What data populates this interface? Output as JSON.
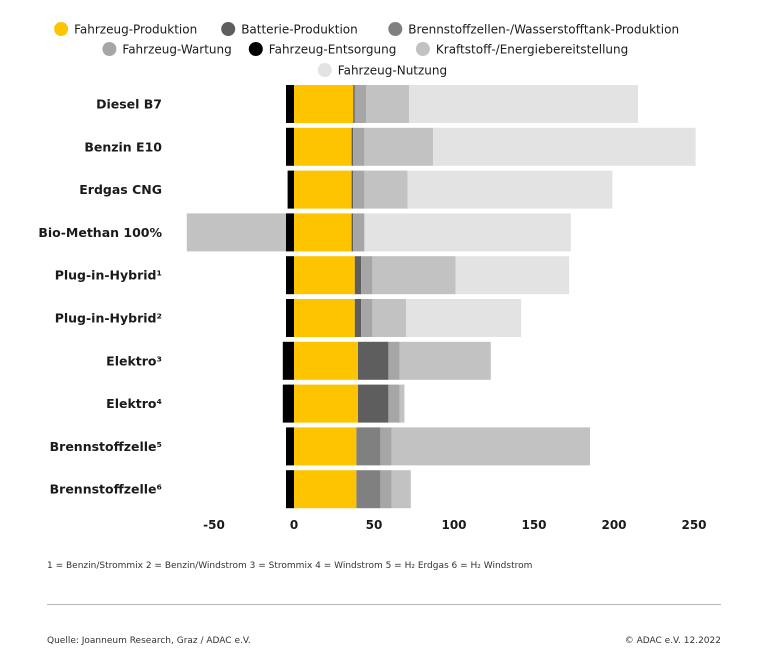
{
  "chart_data": {
    "type": "bar",
    "orientation": "horizontal",
    "stacked": true,
    "categories": [
      "Diesel B7",
      "Benzin E10",
      "Erdgas CNG",
      "Bio-Methan 100%",
      "Plug-in-Hybrid¹",
      "Plug-in-Hybrid²",
      "Elektro³",
      "Elektro⁴",
      "Brennstoffzelle⁵",
      "Brennstoffzelle⁶"
    ],
    "series": [
      {
        "name": "Fahrzeug-Entsorgung",
        "color": "#000000",
        "values": [
          -5,
          -5,
          -4,
          -5,
          -5,
          -5,
          -7,
          -7,
          -5,
          -5
        ]
      },
      {
        "name": "Kraftstoff-/Energiebereitstellung (Gutschrift)",
        "color": "#c2c2c2",
        "values": [
          0,
          0,
          0,
          -62,
          0,
          0,
          0,
          0,
          0,
          0
        ],
        "legend": false
      },
      {
        "name": "Fahrzeug-Produktion",
        "color": "#fec400",
        "values": [
          37,
          36,
          36,
          36,
          38,
          38,
          40,
          40,
          39,
          39
        ]
      },
      {
        "name": "Batterie-Produktion",
        "color": "#5e5e5e",
        "values": [
          1,
          1,
          1,
          1,
          4,
          4,
          19,
          19,
          0,
          0
        ]
      },
      {
        "name": "Brennstoffzellen-/Wasserstofftank-Produktion",
        "color": "#808080",
        "values": [
          0,
          0,
          0,
          0,
          0,
          0,
          0,
          0,
          15,
          15
        ]
      },
      {
        "name": "Fahrzeug-Wartung",
        "color": "#a6a6a6",
        "values": [
          7,
          7,
          7,
          7,
          7,
          7,
          7,
          7,
          7,
          7
        ]
      },
      {
        "name": "Kraftstoff-/Energiebereitstellung",
        "color": "#c2c2c2",
        "values": [
          27,
          43,
          27,
          0,
          52,
          21,
          57,
          3,
          124,
          12
        ]
      },
      {
        "name": "Fahrzeug-Nutzung",
        "color": "#e3e3e3",
        "values": [
          143,
          164,
          128,
          129,
          71,
          72,
          0,
          0,
          0,
          0
        ]
      }
    ],
    "legend": [
      {
        "label": "Fahrzeug-Produktion",
        "color": "#fec400"
      },
      {
        "label": "Batterie-Produktion",
        "color": "#5e5e5e"
      },
      {
        "label": "Brennstoffzellen-/Wasserstofftank-Produktion",
        "color": "#808080"
      },
      {
        "label": "Fahrzeug-Wartung",
        "color": "#a6a6a6"
      },
      {
        "label": "Fahrzeug-Entsorgung",
        "color": "#000000"
      },
      {
        "label": "Kraftstoff-/Energiebereitstellung",
        "color": "#c2c2c2"
      },
      {
        "label": "Fahrzeug-Nutzung",
        "color": "#e3e3e3"
      }
    ],
    "xlim": [
      -62,
      262
    ],
    "xticks": [
      -50,
      0,
      50,
      100,
      150,
      200,
      250
    ],
    "xtick_labels": [
      "-50",
      "0",
      "50",
      "100",
      "150",
      "200",
      "250"
    ],
    "legend_position": "top-center",
    "grid": false
  },
  "footnote": "1 = Benzin/Strommix   2 = Benzin/Windstrom   3 = Strommix   4 = Windstrom   5 = H₂ Erdgas   6 = H₂ Windstrom",
  "source": "Quelle: Joanneum Research, Graz / ADAC e.V.",
  "copyright": "© ADAC e.V. 12.2022"
}
